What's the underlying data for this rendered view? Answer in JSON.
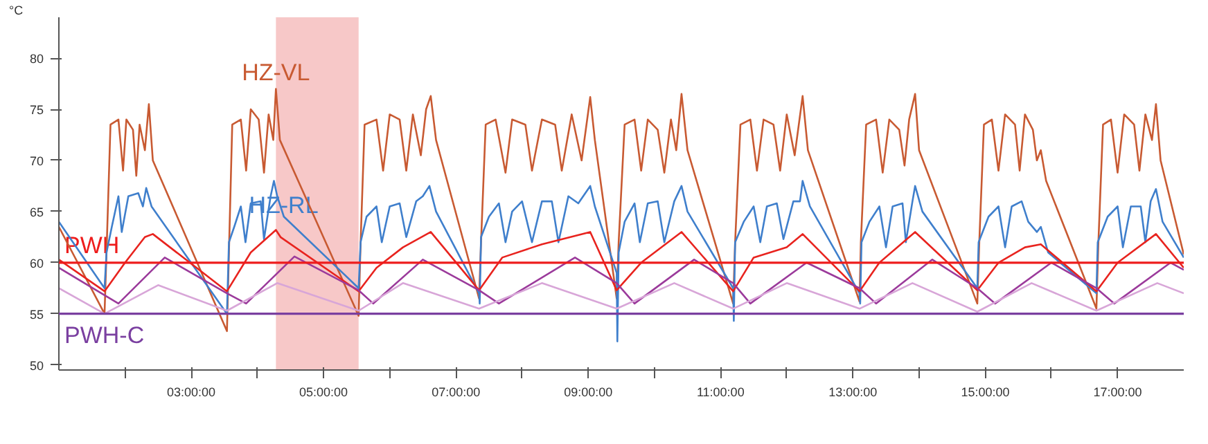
{
  "chart_data": {
    "type": "line",
    "ylabel": "°C",
    "xlim": [
      1,
      18
    ],
    "ylim": [
      49.5,
      84
    ],
    "xticks": [
      {
        "value": 2,
        "label": null
      },
      {
        "value": 3,
        "label": "03:00:00"
      },
      {
        "value": 4,
        "label": null
      },
      {
        "value": 5,
        "label": "05:00:00"
      },
      {
        "value": 6,
        "label": null
      },
      {
        "value": 7,
        "label": "07:00:00"
      },
      {
        "value": 8,
        "label": null
      },
      {
        "value": 9,
        "label": "09:00:00"
      },
      {
        "value": 10,
        "label": null
      },
      {
        "value": 11,
        "label": "11:00:00"
      },
      {
        "value": 12,
        "label": null
      },
      {
        "value": 13,
        "label": "13:00:00"
      },
      {
        "value": 14,
        "label": null
      },
      {
        "value": 15,
        "label": "15:00:00"
      },
      {
        "value": 16,
        "label": null
      },
      {
        "value": 17,
        "label": "17:00:00"
      }
    ],
    "yticks": [
      50,
      55,
      60,
      65,
      70,
      75,
      80
    ],
    "grid": false,
    "legend": false,
    "marker": "none",
    "line_style": "solid",
    "bands": [
      {
        "axis": "x",
        "from": 4.28,
        "to": 5.53,
        "color": "#f4b0b0"
      }
    ],
    "ref_lines": [
      {
        "axis": "y",
        "value": 60,
        "label": "PWH",
        "color": "#ee1c1c"
      },
      {
        "axis": "y",
        "value": 55,
        "label": "PWH-C",
        "color": "#7a3fa0"
      }
    ],
    "series": [
      {
        "name": "HZ-VL",
        "color": "#c85a32",
        "x": [
          1.0,
          1.69,
          1.72,
          1.78,
          1.9,
          1.97,
          2.02,
          2.12,
          2.17,
          2.22,
          2.3,
          2.36,
          2.42,
          3.54,
          3.57,
          3.62,
          3.75,
          3.83,
          3.9,
          4.02,
          4.1,
          4.17,
          4.24,
          4.28,
          4.34,
          5.53,
          5.56,
          5.62,
          5.8,
          5.9,
          6.0,
          6.15,
          6.25,
          6.35,
          6.47,
          6.55,
          6.62,
          6.7,
          7.35,
          7.38,
          7.45,
          7.6,
          7.75,
          7.85,
          8.05,
          8.15,
          8.3,
          8.5,
          8.6,
          8.75,
          8.9,
          9.03,
          9.1,
          9.43,
          9.46,
          9.55,
          9.7,
          9.8,
          9.9,
          10.05,
          10.15,
          10.25,
          10.33,
          10.41,
          10.5,
          11.19,
          11.22,
          11.3,
          11.45,
          11.55,
          11.65,
          11.8,
          11.9,
          12.0,
          12.12,
          12.24,
          12.32,
          13.1,
          13.12,
          13.2,
          13.35,
          13.45,
          13.55,
          13.7,
          13.78,
          13.85,
          13.94,
          14.0,
          14.88,
          14.91,
          14.98,
          15.1,
          15.2,
          15.3,
          15.45,
          15.52,
          15.6,
          15.72,
          15.78,
          15.84,
          15.92,
          16.68,
          16.71,
          16.78,
          16.9,
          17.0,
          17.1,
          17.25,
          17.33,
          17.42,
          17.52,
          17.58,
          17.65,
          18.0
        ],
        "values": [
          63.5,
          55,
          61,
          73.5,
          74,
          69,
          74,
          73,
          68.5,
          73.5,
          71,
          75.5,
          70,
          53.3,
          61,
          73.5,
          74,
          69,
          75,
          74,
          68.8,
          74.5,
          72,
          77,
          72,
          54.8,
          62,
          73.5,
          74,
          69,
          74.5,
          74,
          69,
          74.5,
          70.5,
          75,
          76.3,
          72,
          56.5,
          62,
          73.5,
          74,
          68.8,
          74,
          73.5,
          69,
          74,
          73.5,
          69,
          74.5,
          70,
          76.2,
          72,
          56.5,
          62,
          73.5,
          74,
          69,
          74,
          73,
          68.8,
          74,
          71,
          76.5,
          71,
          56,
          62,
          73.5,
          74,
          69,
          74,
          73.5,
          69,
          74.5,
          70.5,
          76.3,
          71,
          56.2,
          62,
          73.5,
          74,
          68.8,
          74,
          73,
          69.5,
          74,
          76.5,
          71,
          56,
          62,
          73.5,
          74,
          69,
          74.5,
          73.5,
          69,
          74.5,
          73,
          70,
          71,
          68,
          55.5,
          62,
          73.5,
          74,
          68.8,
          74.5,
          73.5,
          69,
          74.5,
          72,
          75.5,
          70,
          60.8
        ]
      },
      {
        "name": "HZ-RL",
        "color": "#3f7fcc",
        "x": [
          1.0,
          1.69,
          1.72,
          1.8,
          1.9,
          1.95,
          2.05,
          2.2,
          2.27,
          2.32,
          2.4,
          3.54,
          3.57,
          3.65,
          3.75,
          3.82,
          3.9,
          4.05,
          4.1,
          4.2,
          4.25,
          4.3,
          4.4,
          5.53,
          5.56,
          5.65,
          5.8,
          5.88,
          6.0,
          6.15,
          6.25,
          6.4,
          6.5,
          6.6,
          6.7,
          7.35,
          7.36,
          7.38,
          7.5,
          7.65,
          7.75,
          7.85,
          8.0,
          8.15,
          8.3,
          8.45,
          8.55,
          8.7,
          8.85,
          9.03,
          9.1,
          9.43,
          9.44,
          9.46,
          9.55,
          9.7,
          9.78,
          9.9,
          10.05,
          10.15,
          10.3,
          10.41,
          10.5,
          11.19,
          11.2,
          11.22,
          11.35,
          11.5,
          11.6,
          11.7,
          11.85,
          11.95,
          12.1,
          12.2,
          12.24,
          12.35,
          13.1,
          13.11,
          13.13,
          13.25,
          13.4,
          13.5,
          13.6,
          13.75,
          13.8,
          13.9,
          13.94,
          14.05,
          14.88,
          14.9,
          15.05,
          15.2,
          15.3,
          15.4,
          15.55,
          15.65,
          15.78,
          15.84,
          15.95,
          16.68,
          16.7,
          16.85,
          17.0,
          17.08,
          17.2,
          17.35,
          17.42,
          17.5,
          17.58,
          17.68,
          18.0
        ],
        "values": [
          64,
          57.5,
          61,
          63.5,
          66.5,
          63,
          66.5,
          66.8,
          65.5,
          67.3,
          65.5,
          55,
          62,
          63.5,
          65.5,
          62,
          65.8,
          66,
          62.3,
          66.5,
          68,
          66.5,
          64.5,
          57.5,
          62,
          64.5,
          65.5,
          62,
          65.5,
          65.8,
          62.5,
          66,
          66.5,
          67.5,
          65,
          57,
          56,
          62.5,
          64.5,
          65.8,
          62,
          65,
          66,
          62,
          66,
          66,
          62,
          66.5,
          65.8,
          67.5,
          65.5,
          59,
          52.3,
          61,
          64,
          65.8,
          62,
          65.8,
          66,
          62,
          66,
          67.5,
          65,
          57.5,
          54.3,
          62,
          64,
          65.5,
          62,
          65.5,
          65.8,
          62.3,
          66,
          66,
          68,
          65.5,
          57,
          56,
          62,
          64,
          65.5,
          61.5,
          65.5,
          65.8,
          62,
          66,
          67.5,
          65,
          57.5,
          62,
          64.5,
          65.5,
          61.5,
          65.5,
          66,
          64,
          63,
          63.5,
          61,
          57,
          62,
          64.5,
          65.5,
          61.5,
          65.5,
          65.5,
          62,
          66,
          67.2,
          64,
          60.5
        ]
      },
      {
        "color": "#e8231e",
        "x": [
          1.0,
          1.69,
          2.0,
          2.3,
          2.42,
          3.54,
          3.9,
          4.28,
          4.35,
          5.53,
          5.8,
          6.2,
          6.62,
          7.35,
          7.7,
          8.3,
          9.03,
          9.43,
          9.8,
          10.41,
          11.19,
          11.5,
          12.0,
          12.24,
          13.1,
          13.4,
          13.94,
          14.88,
          15.2,
          15.6,
          15.84,
          16.68,
          17.0,
          17.58,
          18.0
        ],
        "values": [
          60.3,
          57.2,
          60,
          62.5,
          62.8,
          57.2,
          61,
          63.2,
          62.5,
          57.2,
          59.5,
          61.5,
          63,
          57.3,
          60.5,
          61.8,
          63,
          57.3,
          60,
          63,
          57.2,
          60.5,
          61.5,
          62.8,
          57.2,
          60,
          63,
          57.3,
          60,
          61.5,
          61.8,
          57.2,
          60,
          62.8,
          59.5
        ]
      },
      {
        "color": "#9b3a9b",
        "x": [
          1.0,
          1.9,
          2.6,
          3.54,
          3.83,
          4.56,
          5.53,
          5.75,
          6.5,
          7.35,
          7.65,
          8.8,
          9.43,
          9.7,
          10.6,
          11.19,
          11.45,
          12.3,
          13.1,
          13.35,
          14.2,
          14.88,
          15.15,
          16.0,
          16.68,
          16.95,
          17.8,
          18.0
        ],
        "values": [
          59.5,
          56,
          60.5,
          57,
          56,
          60.6,
          57.3,
          56,
          60.3,
          57.3,
          56,
          60.5,
          58,
          56,
          60.3,
          58,
          56,
          60,
          57.5,
          56,
          60.3,
          57.5,
          56,
          60,
          57.5,
          56,
          60,
          59.3
        ]
      },
      {
        "color": "#d8a6d8",
        "x": [
          1.0,
          1.69,
          2.5,
          3.54,
          4.3,
          5.53,
          6.2,
          7.35,
          8.3,
          9.43,
          10.3,
          11.19,
          12.0,
          13.1,
          13.9,
          14.88,
          15.7,
          16.68,
          17.6,
          18.0
        ],
        "values": [
          57.5,
          55,
          57.8,
          55.3,
          58,
          55.3,
          58,
          55.5,
          58,
          55.5,
          58,
          55.5,
          58,
          55.5,
          58,
          55.2,
          58,
          55.3,
          58,
          57
        ]
      }
    ]
  }
}
